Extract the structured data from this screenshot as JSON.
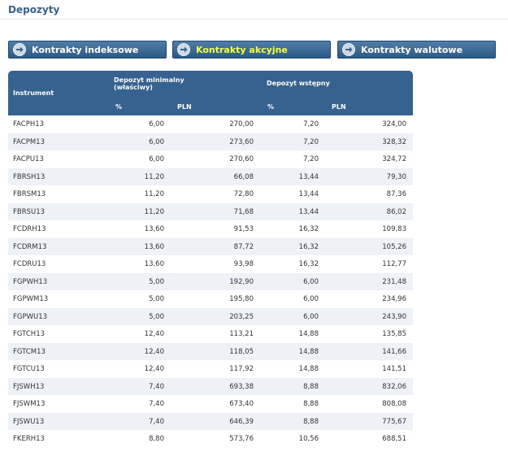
{
  "page": {
    "title": "Depozyty"
  },
  "tabs": [
    {
      "label": "Kontrakty indeksowe",
      "active": false,
      "icon": "arrow-right-icon"
    },
    {
      "label": "Kontrakty akcyjne",
      "active": true,
      "icon": "arrow-right-icon"
    },
    {
      "label": "Kontrakty walutowe",
      "active": false,
      "icon": "arrow-right-icon"
    }
  ],
  "colors": {
    "header_bg": "#35628f",
    "active_tab_text": "#f4ff40",
    "row_alt": "#eef2f6"
  },
  "table": {
    "headers": {
      "instrument": "Instrument",
      "deposit_min": "Depozyt minimalny (właściwy)",
      "deposit_initial": "Depozyt wstępny",
      "pct_1": "%",
      "pln_1": "PLN",
      "pct_2": "%",
      "pln_2": "PLN"
    },
    "rows": [
      [
        "FACPH13",
        "6,00",
        "270,00",
        "7,20",
        "324,00"
      ],
      [
        "FACPM13",
        "6,00",
        "273,60",
        "7,20",
        "328,32"
      ],
      [
        "FACPU13",
        "6,00",
        "270,60",
        "7,20",
        "324,72"
      ],
      [
        "FBRSH13",
        "11,20",
        "66,08",
        "13,44",
        "79,30"
      ],
      [
        "FBRSM13",
        "11,20",
        "72,80",
        "13,44",
        "87,36"
      ],
      [
        "FBRSU13",
        "11,20",
        "71,68",
        "13,44",
        "86,02"
      ],
      [
        "FCDRH13",
        "13,60",
        "91,53",
        "16,32",
        "109,83"
      ],
      [
        "FCDRM13",
        "13,60",
        "87,72",
        "16,32",
        "105,26"
      ],
      [
        "FCDRU13",
        "13,60",
        "93,98",
        "16,32",
        "112,77"
      ],
      [
        "FGPWH13",
        "5,00",
        "192,90",
        "6,00",
        "231,48"
      ],
      [
        "FGPWM13",
        "5,00",
        "195,80",
        "6,00",
        "234,96"
      ],
      [
        "FGPWU13",
        "5,00",
        "203,25",
        "6,00",
        "243,90"
      ],
      [
        "FGTCH13",
        "12,40",
        "113,21",
        "14,88",
        "135,85"
      ],
      [
        "FGTCM13",
        "12,40",
        "118,05",
        "14,88",
        "141,66"
      ],
      [
        "FGTCU13",
        "12,40",
        "117,92",
        "14,88",
        "141,51"
      ],
      [
        "FJSWH13",
        "7,40",
        "693,38",
        "8,88",
        "832,06"
      ],
      [
        "FJSWM13",
        "7,40",
        "673,40",
        "8,88",
        "808,08"
      ],
      [
        "FJSWU13",
        "7,40",
        "646,39",
        "8,88",
        "775,67"
      ],
      [
        "FKERH13",
        "8,80",
        "573,76",
        "10,56",
        "688,51"
      ]
    ]
  }
}
